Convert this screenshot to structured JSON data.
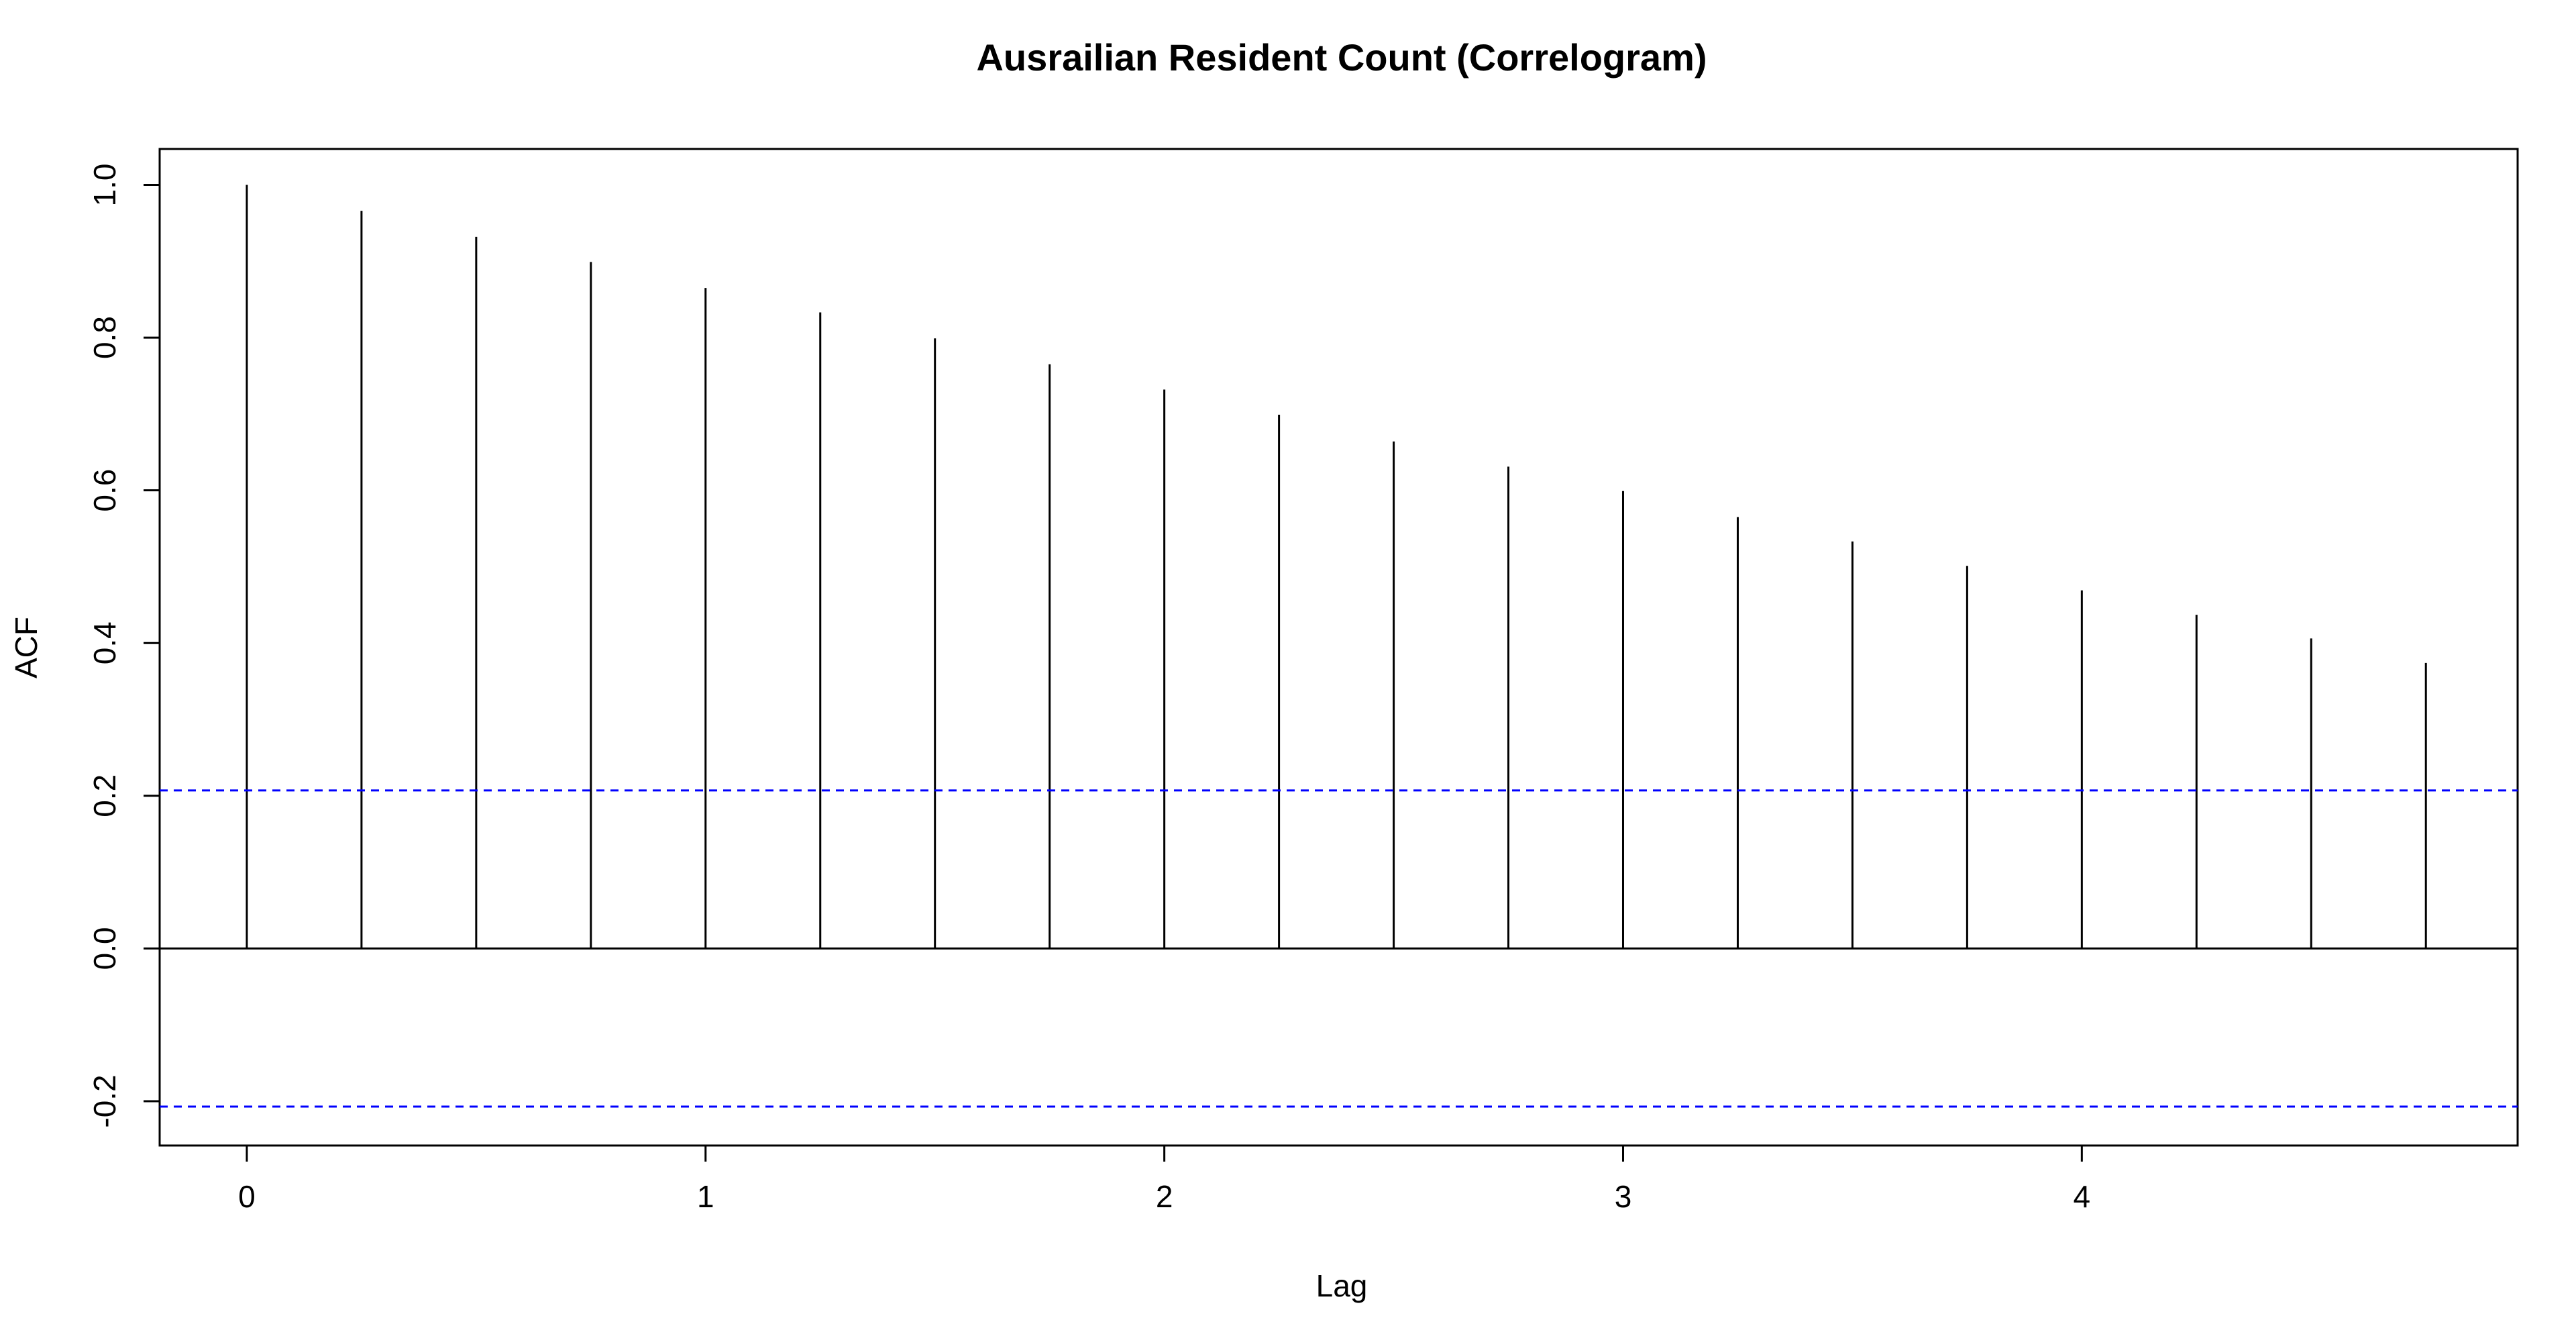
{
  "chart_data": {
    "type": "bar",
    "title": "Ausrailian Resident Count (Correlogram)",
    "xlabel": "Lag",
    "ylabel": "ACF",
    "xlim": [
      -0.19,
      4.95
    ],
    "ylim": [
      -0.258,
      1.047
    ],
    "x_ticks": [
      0,
      1,
      2,
      3,
      4
    ],
    "x_tick_labels": [
      "0",
      "1",
      "2",
      "3",
      "4"
    ],
    "y_ticks": [
      -0.2,
      0.0,
      0.2,
      0.4,
      0.6,
      0.8,
      1.0
    ],
    "y_tick_labels": [
      "-0.2",
      "0.0",
      "0.2",
      "0.4",
      "0.6",
      "0.8",
      "1.0"
    ],
    "lags": [
      0,
      0.25,
      0.5,
      0.75,
      1,
      1.25,
      1.5,
      1.75,
      2,
      2.25,
      2.5,
      2.75,
      3,
      3.25,
      3.5,
      3.75,
      4,
      4.25,
      4.5,
      4.75
    ],
    "values": [
      1.0,
      0.966,
      0.932,
      0.899,
      0.865,
      0.833,
      0.799,
      0.765,
      0.732,
      0.699,
      0.664,
      0.631,
      0.599,
      0.565,
      0.533,
      0.501,
      0.469,
      0.437,
      0.406,
      0.374
    ],
    "confidence_bound": 0.207,
    "zero_line": 0,
    "grid": false,
    "colors": {
      "spikes": "#000000",
      "confidence": "#0000ff",
      "axes": "#000000"
    }
  }
}
